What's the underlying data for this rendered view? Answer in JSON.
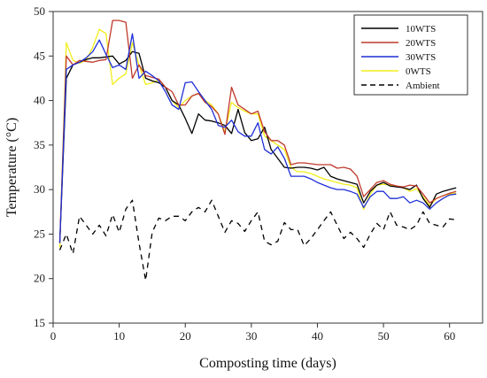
{
  "chart_data": {
    "type": "line",
    "xlabel": "Composting time (days)",
    "ylabel": "Temperature (°C)",
    "xlim": [
      0,
      65
    ],
    "ylim": [
      15,
      50
    ],
    "xticks": [
      0,
      10,
      20,
      30,
      40,
      50,
      60
    ],
    "yticks": [
      15,
      20,
      25,
      30,
      35,
      40,
      45,
      50
    ],
    "grid": false,
    "legend_position": "top-right",
    "series": [
      {
        "name": "10WTS",
        "color": "#000000",
        "dash": "solid",
        "x": [
          1,
          2,
          3,
          4,
          5,
          6,
          7,
          8,
          9,
          10,
          11,
          12,
          13,
          14,
          15,
          16,
          17,
          18,
          19,
          20,
          21,
          22,
          23,
          24,
          25,
          26,
          27,
          28,
          29,
          30,
          31,
          32,
          33,
          34,
          35,
          36,
          37,
          38,
          39,
          40,
          41,
          42,
          43,
          44,
          45,
          46,
          47,
          48,
          49,
          50,
          51,
          52,
          53,
          54,
          55,
          56,
          57,
          58,
          59,
          60,
          61
        ],
        "values": [
          24,
          42.5,
          44,
          44.3,
          44.6,
          44.8,
          44.8,
          44.9,
          45,
          44.1,
          44.5,
          45.5,
          45.3,
          42.5,
          42.2,
          42,
          41.5,
          40,
          39.5,
          38,
          36.3,
          38.5,
          37.8,
          37.7,
          37.5,
          37.2,
          36.3,
          39,
          36.4,
          35.5,
          35.7,
          37,
          34.5,
          33.5,
          32.5,
          32.4,
          32.5,
          32.5,
          32.4,
          32.2,
          32.5,
          31.5,
          31.2,
          31,
          30.8,
          30.6,
          28.5,
          29.8,
          30.5,
          30.8,
          30.4,
          30.3,
          30.2,
          30,
          30.5,
          29,
          28,
          29.5,
          29.8,
          30,
          30.2
        ]
      },
      {
        "name": "20WTS",
        "color": "#c0392b",
        "dash": "solid",
        "x": [
          1,
          2,
          3,
          4,
          5,
          6,
          7,
          8,
          9,
          10,
          11,
          12,
          13,
          14,
          15,
          16,
          17,
          18,
          19,
          20,
          21,
          22,
          23,
          24,
          25,
          26,
          27,
          28,
          29,
          30,
          31,
          32,
          33,
          34,
          35,
          36,
          37,
          38,
          39,
          40,
          41,
          42,
          43,
          44,
          45,
          46,
          47,
          48,
          49,
          50,
          51,
          52,
          53,
          54,
          55,
          56,
          57,
          58,
          59,
          60,
          61
        ],
        "values": [
          24,
          45,
          44,
          44.5,
          44.4,
          44.3,
          44.5,
          44.6,
          49,
          49,
          48.8,
          42.5,
          44,
          42.8,
          42.6,
          42.4,
          41.5,
          41,
          39.5,
          39.5,
          40.5,
          40.8,
          39.8,
          39.3,
          38.5,
          36.2,
          41.5,
          39.5,
          39,
          38.5,
          38.8,
          36.5,
          35.5,
          35.5,
          35,
          32.8,
          33,
          33,
          32.9,
          32.8,
          32.8,
          32.8,
          32.4,
          32.5,
          32.3,
          31.5,
          29.2,
          30,
          30.8,
          31,
          30.6,
          30.4,
          30.3,
          30.5,
          30.4,
          29.5,
          28.5,
          29,
          29.3,
          29.6,
          29.8
        ]
      },
      {
        "name": "30WTS",
        "color": "#1f2fd6",
        "dash": "solid",
        "x": [
          1,
          2,
          3,
          4,
          5,
          6,
          7,
          8,
          9,
          10,
          11,
          12,
          13,
          14,
          15,
          16,
          17,
          18,
          19,
          20,
          21,
          22,
          23,
          24,
          25,
          26,
          27,
          28,
          29,
          30,
          31,
          32,
          33,
          34,
          35,
          36,
          37,
          38,
          39,
          40,
          41,
          42,
          43,
          44,
          45,
          46,
          47,
          48,
          49,
          50,
          51,
          52,
          53,
          54,
          55,
          56,
          57,
          58,
          59,
          60,
          61
        ],
        "values": [
          24,
          43.5,
          44,
          44.3,
          44.8,
          45.5,
          46.8,
          45.2,
          43.7,
          44,
          43.5,
          47.5,
          42.5,
          43.3,
          42.8,
          42.2,
          41,
          39.5,
          39,
          42,
          42.1,
          41,
          40,
          39,
          37.2,
          37,
          37.8,
          36.5,
          36,
          36,
          37.5,
          34.5,
          34,
          34.8,
          33.5,
          31.5,
          31.5,
          31.5,
          31.2,
          30.8,
          30.5,
          30.2,
          30,
          30,
          29.8,
          29.5,
          28,
          29.2,
          29.8,
          29.8,
          29,
          29,
          29.2,
          28.5,
          28.8,
          28.5,
          27.8,
          28.5,
          29,
          29.4,
          29.5
        ]
      },
      {
        "name": "0WTS",
        "color": "#f2ee1a",
        "dash": "solid",
        "x": [
          1,
          2,
          3,
          4,
          5,
          6,
          7,
          8,
          9,
          10,
          11,
          12,
          13,
          14,
          15,
          16,
          17,
          18,
          19,
          20,
          21,
          22,
          23,
          24,
          25,
          26,
          27,
          28,
          29,
          30,
          31,
          32,
          33,
          34,
          35,
          36,
          37,
          38,
          39,
          40,
          41,
          42,
          43,
          44,
          45,
          46,
          47,
          48,
          49,
          50,
          51,
          52,
          53,
          54,
          55,
          56,
          57,
          58,
          59,
          60,
          61
        ],
        "values": [
          23.5,
          46.5,
          44.5,
          44.2,
          44.5,
          46,
          48,
          47.5,
          41.8,
          42.5,
          43,
          46.5,
          44,
          41.8,
          42,
          42.3,
          41.5,
          40,
          39.2,
          40,
          40.5,
          40.8,
          40,
          39.5,
          38.5,
          36.5,
          39.8,
          39.2,
          38.8,
          38.5,
          38.5,
          36,
          35.5,
          35,
          34.5,
          32.5,
          32,
          32,
          31.8,
          31.5,
          31.2,
          31,
          30.8,
          30.6,
          30.5,
          30.2,
          27.8,
          29.5,
          30.5,
          30.6,
          30.5,
          30.4,
          30.2,
          29.8,
          30.1,
          29.2,
          28.2,
          29,
          29.3,
          29.5,
          29.6
        ]
      },
      {
        "name": "Ambient",
        "color": "#000000",
        "dash": "dashed",
        "x": [
          1,
          2,
          3,
          4,
          5,
          6,
          7,
          8,
          9,
          10,
          11,
          12,
          13,
          14,
          15,
          16,
          17,
          18,
          19,
          20,
          21,
          22,
          23,
          24,
          25,
          26,
          27,
          28,
          29,
          30,
          31,
          32,
          33,
          34,
          35,
          36,
          37,
          38,
          39,
          40,
          41,
          42,
          43,
          44,
          45,
          46,
          47,
          48,
          49,
          50,
          51,
          52,
          53,
          54,
          55,
          56,
          57,
          58,
          59,
          60,
          61
        ],
        "values": [
          23.2,
          25,
          22.8,
          27,
          26,
          25,
          26,
          24.8,
          27.2,
          25.2,
          27.8,
          28.8,
          24,
          19.8,
          25.2,
          26.8,
          26.5,
          27,
          27,
          26.5,
          27.5,
          28,
          27.5,
          28.8,
          27,
          25.2,
          26.5,
          26.2,
          25.3,
          26.5,
          27.5,
          24.2,
          23.8,
          24.2,
          26.3,
          25.5,
          25.5,
          23.7,
          24.5,
          25.5,
          26.5,
          27.5,
          26,
          24.5,
          25.2,
          24.5,
          23.5,
          25,
          26.2,
          25.5,
          27.5,
          26,
          25.8,
          25.5,
          26,
          27.5,
          26.2,
          26,
          25.8,
          26.7,
          26.6
        ]
      }
    ]
  }
}
